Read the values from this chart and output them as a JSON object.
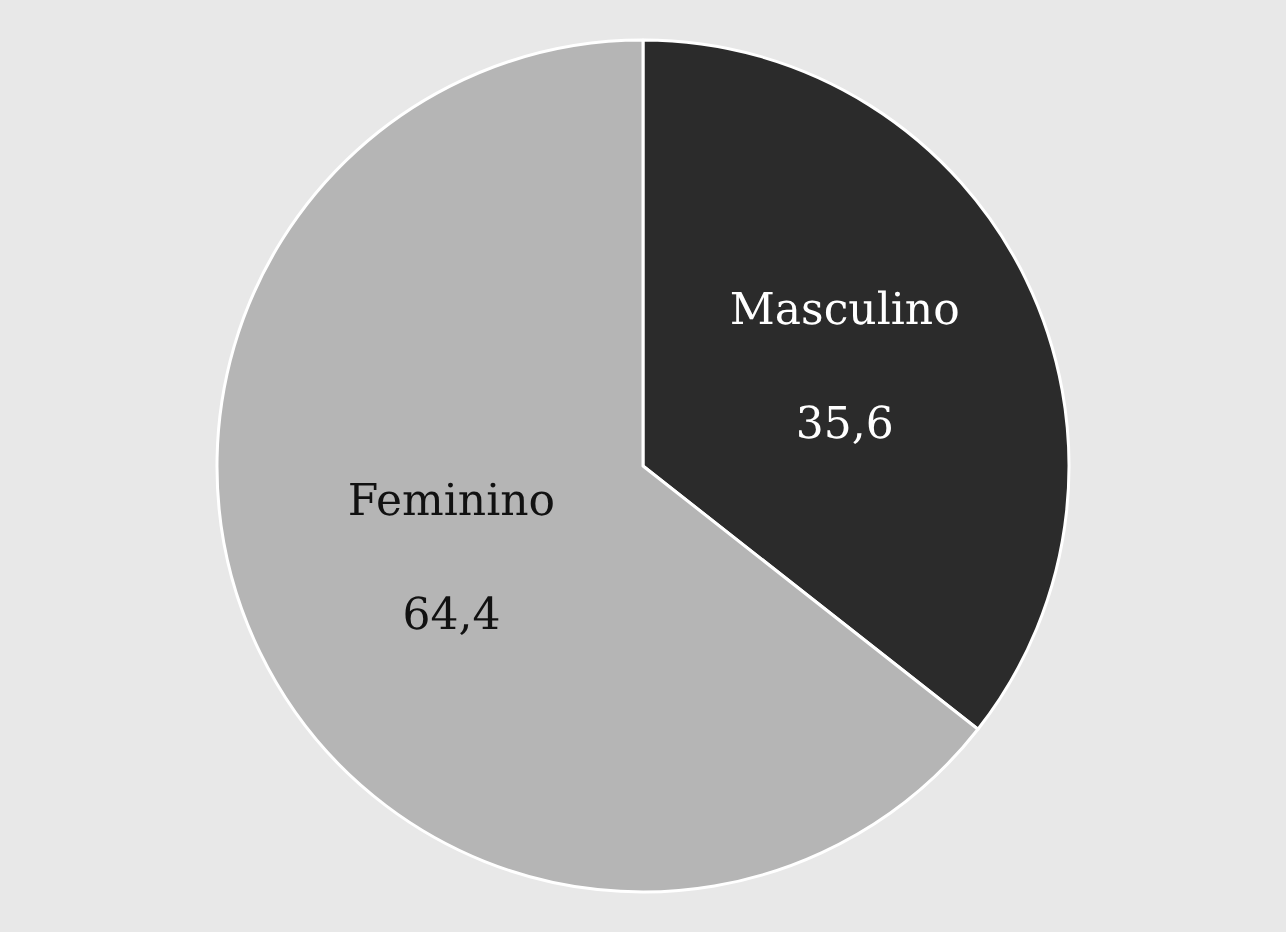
{
  "chart_data": {
    "type": "pie",
    "categories": [
      "Masculino",
      "Feminino"
    ],
    "values": [
      35.6,
      64.4
    ],
    "colors": [
      "#2b2b2b",
      "#b5b5b5"
    ],
    "value_labels": [
      "35,6",
      "64,4"
    ]
  }
}
